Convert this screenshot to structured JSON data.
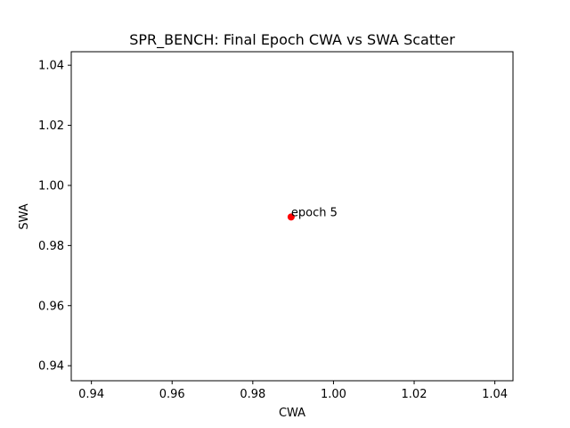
{
  "chart_data": {
    "type": "scatter",
    "title": "SPR_BENCH: Final Epoch CWA vs SWA Scatter",
    "xlabel": "CWA",
    "ylabel": "SWA",
    "xlim": [
      0.935,
      1.0445
    ],
    "ylim": [
      0.935,
      1.0445
    ],
    "xticks": [
      0.94,
      0.96,
      0.98,
      1.0,
      1.02,
      1.04
    ],
    "xtick_labels": [
      "0.94",
      "0.96",
      "0.98",
      "1.00",
      "1.02",
      "1.04"
    ],
    "yticks": [
      0.94,
      0.96,
      0.98,
      1.0,
      1.02,
      1.04
    ],
    "ytick_labels": [
      "0.94",
      "0.96",
      "0.98",
      "1.00",
      "1.02",
      "1.04"
    ],
    "grid": false,
    "points": [
      {
        "x": 0.9895,
        "y": 0.9895,
        "label": "epoch 5",
        "color": "#ff0000"
      }
    ]
  }
}
